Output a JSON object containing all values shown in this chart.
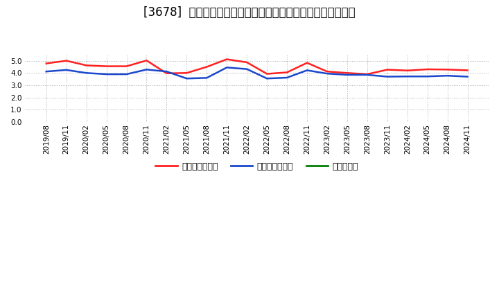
{
  "title": "[3678]  売上債権回転率、買入債務回転率、在庫回転率の推移",
  "x_labels": [
    "2019/08",
    "2019/11",
    "2020/02",
    "2020/05",
    "2020/08",
    "2020/11",
    "2021/02",
    "2021/05",
    "2021/08",
    "2021/11",
    "2022/02",
    "2022/05",
    "2022/08",
    "2022/11",
    "2023/02",
    "2023/05",
    "2023/08",
    "2023/11",
    "2024/02",
    "2024/05",
    "2024/08",
    "2024/11"
  ],
  "receivables_turnover": [
    4.78,
    5.0,
    4.62,
    4.55,
    4.55,
    5.02,
    3.97,
    4.0,
    4.5,
    5.12,
    4.87,
    3.93,
    4.05,
    4.83,
    4.12,
    4.0,
    3.9,
    4.27,
    4.2,
    4.3,
    4.28,
    4.22
  ],
  "payables_turnover": [
    4.12,
    4.25,
    4.0,
    3.9,
    3.9,
    4.28,
    4.12,
    3.55,
    3.6,
    4.45,
    4.32,
    3.55,
    3.62,
    4.22,
    3.95,
    3.85,
    3.85,
    3.7,
    3.72,
    3.72,
    3.78,
    3.7
  ],
  "inventory_turnover": [
    null,
    null,
    null,
    null,
    null,
    null,
    null,
    null,
    null,
    null,
    null,
    null,
    null,
    null,
    null,
    null,
    null,
    null,
    null,
    null,
    null,
    null
  ],
  "receivables_color": "#ff2020",
  "payables_color": "#1a47cc",
  "inventory_color": "#008000",
  "background_color": "#ffffff",
  "grid_color": "#aaaaaa",
  "ylim": [
    0.0,
    5.5
  ],
  "yticks": [
    0.0,
    1.0,
    2.0,
    3.0,
    4.0,
    5.0
  ],
  "legend_labels": [
    "売上債権回転率",
    "買入債務回転率",
    "在庫回転率"
  ],
  "title_fontsize": 12,
  "tick_fontsize": 7.5,
  "legend_fontsize": 9
}
